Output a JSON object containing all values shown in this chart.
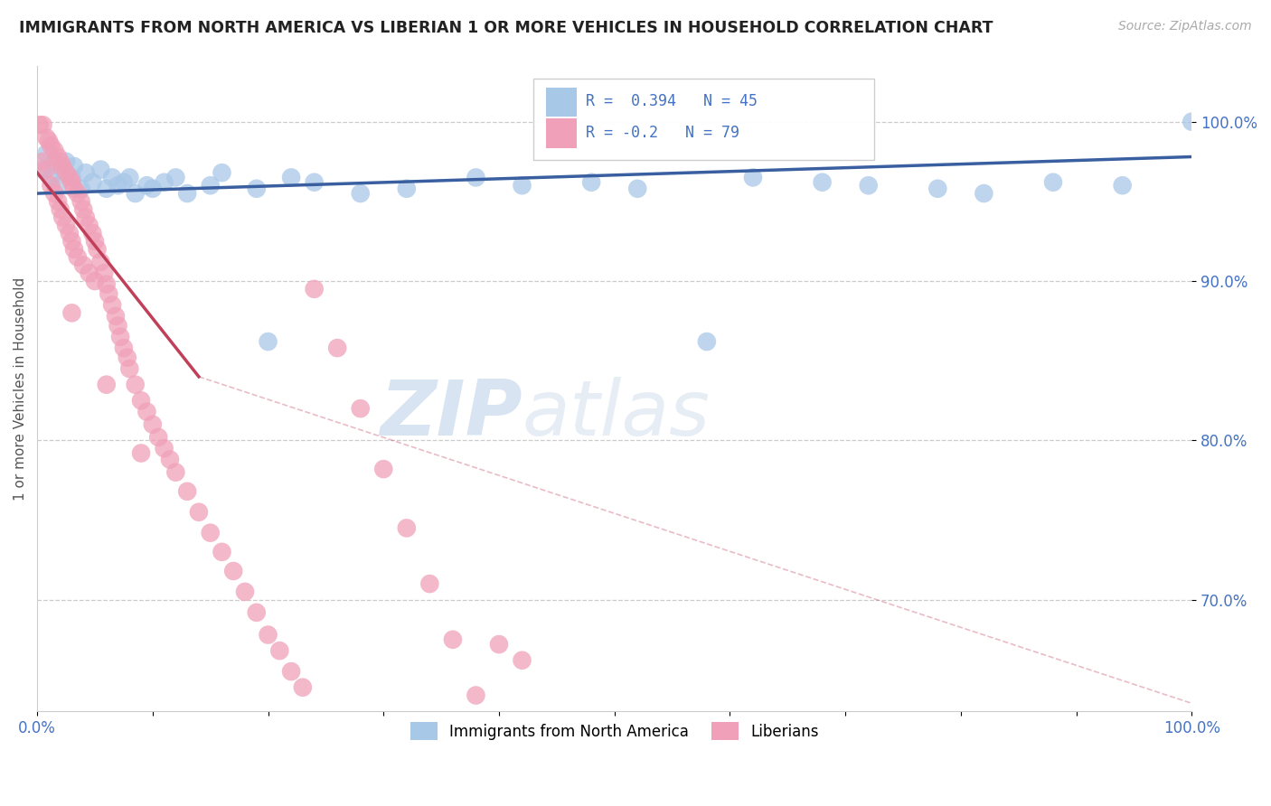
{
  "title": "IMMIGRANTS FROM NORTH AMERICA VS LIBERIAN 1 OR MORE VEHICLES IN HOUSEHOLD CORRELATION CHART",
  "source": "Source: ZipAtlas.com",
  "ylabel": "1 or more Vehicles in Household",
  "R_blue": 0.394,
  "N_blue": 45,
  "R_pink": -0.2,
  "N_pink": 79,
  "blue_color": "#a8c8e8",
  "pink_color": "#f0a0b8",
  "trend_blue": "#3a5fa0",
  "trend_pink": "#c0405a",
  "background": "#ffffff",
  "watermark_zip": "ZIP",
  "watermark_atlas": "atlas",
  "blue_scatter_x": [
    0.005,
    0.008,
    0.012,
    0.015,
    0.018,
    0.022,
    0.025,
    0.03,
    0.032,
    0.038,
    0.042,
    0.048,
    0.055,
    0.06,
    0.065,
    0.07,
    0.075,
    0.08,
    0.085,
    0.095,
    0.1,
    0.11,
    0.12,
    0.13,
    0.15,
    0.16,
    0.19,
    0.2,
    0.22,
    0.24,
    0.28,
    0.32,
    0.38,
    0.42,
    0.48,
    0.52,
    0.58,
    0.62,
    0.68,
    0.72,
    0.78,
    0.82,
    0.88,
    0.94,
    1.0
  ],
  "blue_scatter_y": [
    0.97,
    0.98,
    0.965,
    0.975,
    0.96,
    0.97,
    0.975,
    0.965,
    0.972,
    0.958,
    0.968,
    0.962,
    0.97,
    0.958,
    0.965,
    0.96,
    0.962,
    0.965,
    0.955,
    0.96,
    0.958,
    0.962,
    0.965,
    0.955,
    0.96,
    0.968,
    0.958,
    0.862,
    0.965,
    0.962,
    0.955,
    0.958,
    0.965,
    0.96,
    0.962,
    0.958,
    0.862,
    0.965,
    0.962,
    0.96,
    0.958,
    0.955,
    0.962,
    0.96,
    1.0
  ],
  "pink_scatter_x": [
    0.002,
    0.005,
    0.005,
    0.008,
    0.008,
    0.01,
    0.012,
    0.012,
    0.015,
    0.015,
    0.018,
    0.018,
    0.02,
    0.02,
    0.022,
    0.022,
    0.025,
    0.025,
    0.028,
    0.028,
    0.03,
    0.03,
    0.032,
    0.032,
    0.035,
    0.035,
    0.038,
    0.04,
    0.04,
    0.042,
    0.045,
    0.045,
    0.048,
    0.05,
    0.05,
    0.052,
    0.055,
    0.058,
    0.06,
    0.062,
    0.065,
    0.068,
    0.07,
    0.072,
    0.075,
    0.078,
    0.08,
    0.085,
    0.09,
    0.095,
    0.1,
    0.105,
    0.11,
    0.115,
    0.12,
    0.13,
    0.14,
    0.15,
    0.16,
    0.17,
    0.18,
    0.19,
    0.2,
    0.21,
    0.22,
    0.23,
    0.24,
    0.26,
    0.28,
    0.3,
    0.32,
    0.34,
    0.36,
    0.38,
    0.4,
    0.42,
    0.03,
    0.06,
    0.09
  ],
  "pink_scatter_y": [
    0.998,
    0.998,
    0.975,
    0.99,
    0.97,
    0.988,
    0.985,
    0.96,
    0.982,
    0.955,
    0.978,
    0.95,
    0.975,
    0.945,
    0.972,
    0.94,
    0.968,
    0.935,
    0.965,
    0.93,
    0.962,
    0.925,
    0.958,
    0.92,
    0.955,
    0.915,
    0.95,
    0.945,
    0.91,
    0.94,
    0.935,
    0.905,
    0.93,
    0.925,
    0.9,
    0.92,
    0.912,
    0.905,
    0.898,
    0.892,
    0.885,
    0.878,
    0.872,
    0.865,
    0.858,
    0.852,
    0.845,
    0.835,
    0.825,
    0.818,
    0.81,
    0.802,
    0.795,
    0.788,
    0.78,
    0.768,
    0.755,
    0.742,
    0.73,
    0.718,
    0.705,
    0.692,
    0.678,
    0.668,
    0.655,
    0.645,
    0.895,
    0.858,
    0.82,
    0.782,
    0.745,
    0.71,
    0.675,
    0.64,
    0.672,
    0.662,
    0.88,
    0.835,
    0.792
  ],
  "xlim": [
    0.0,
    1.0
  ],
  "ylim": [
    0.63,
    1.035
  ],
  "yticks": [
    0.7,
    0.8,
    0.9,
    1.0
  ],
  "ytick_labels": [
    "70.0%",
    "80.0%",
    "90.0%",
    "100.0%"
  ],
  "xticks": [
    0.0,
    0.1,
    0.2,
    0.3,
    0.4,
    0.5,
    0.6,
    0.7,
    0.8,
    0.9,
    1.0
  ],
  "xtick_labels": [
    "0.0%",
    "",
    "",
    "",
    "",
    "",
    "",
    "",
    "",
    "",
    "100.0%"
  ],
  "grid_color": "#cccccc",
  "tick_color": "#4472c4"
}
